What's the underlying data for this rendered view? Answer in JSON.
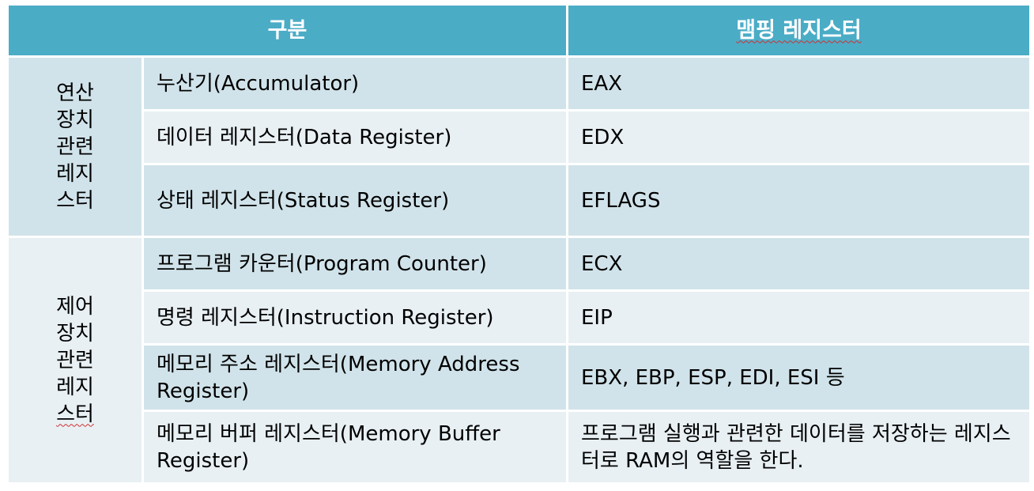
{
  "header": {
    "category": "구분",
    "mapping": "맴핑 레지스터"
  },
  "groups": [
    {
      "lines": [
        "연산",
        "장치",
        "관련",
        "레지",
        "스터"
      ],
      "rows": [
        {
          "register": "누산기(Accumulator)",
          "mapping": "EAX"
        },
        {
          "register": "데이터 레지스터(Data Register)",
          "mapping": "EDX"
        },
        {
          "register": "상태 레지스터(Status Register)",
          "mapping": "EFLAGS"
        }
      ]
    },
    {
      "lines": [
        "제어",
        "장치",
        "관련",
        "레지",
        "스터"
      ],
      "rows": [
        {
          "register": "프로그램 카운터(Program Counter)",
          "mapping": "ECX"
        },
        {
          "register": "명령 레지스터(Instruction Register)",
          "mapping": "EIP"
        },
        {
          "register": "메모리 주소 레지스터(Memory Address Register)",
          "mapping": "EBX, EBP, ESP, EDI, ESI 등"
        },
        {
          "register": "메모리 버퍼 레지스터(Memory Buffer Register)",
          "mapping": "프로그램 실행과 관련한 데이터를 저장하는 레지스터로 RAM의 역할을 한다."
        }
      ]
    }
  ]
}
